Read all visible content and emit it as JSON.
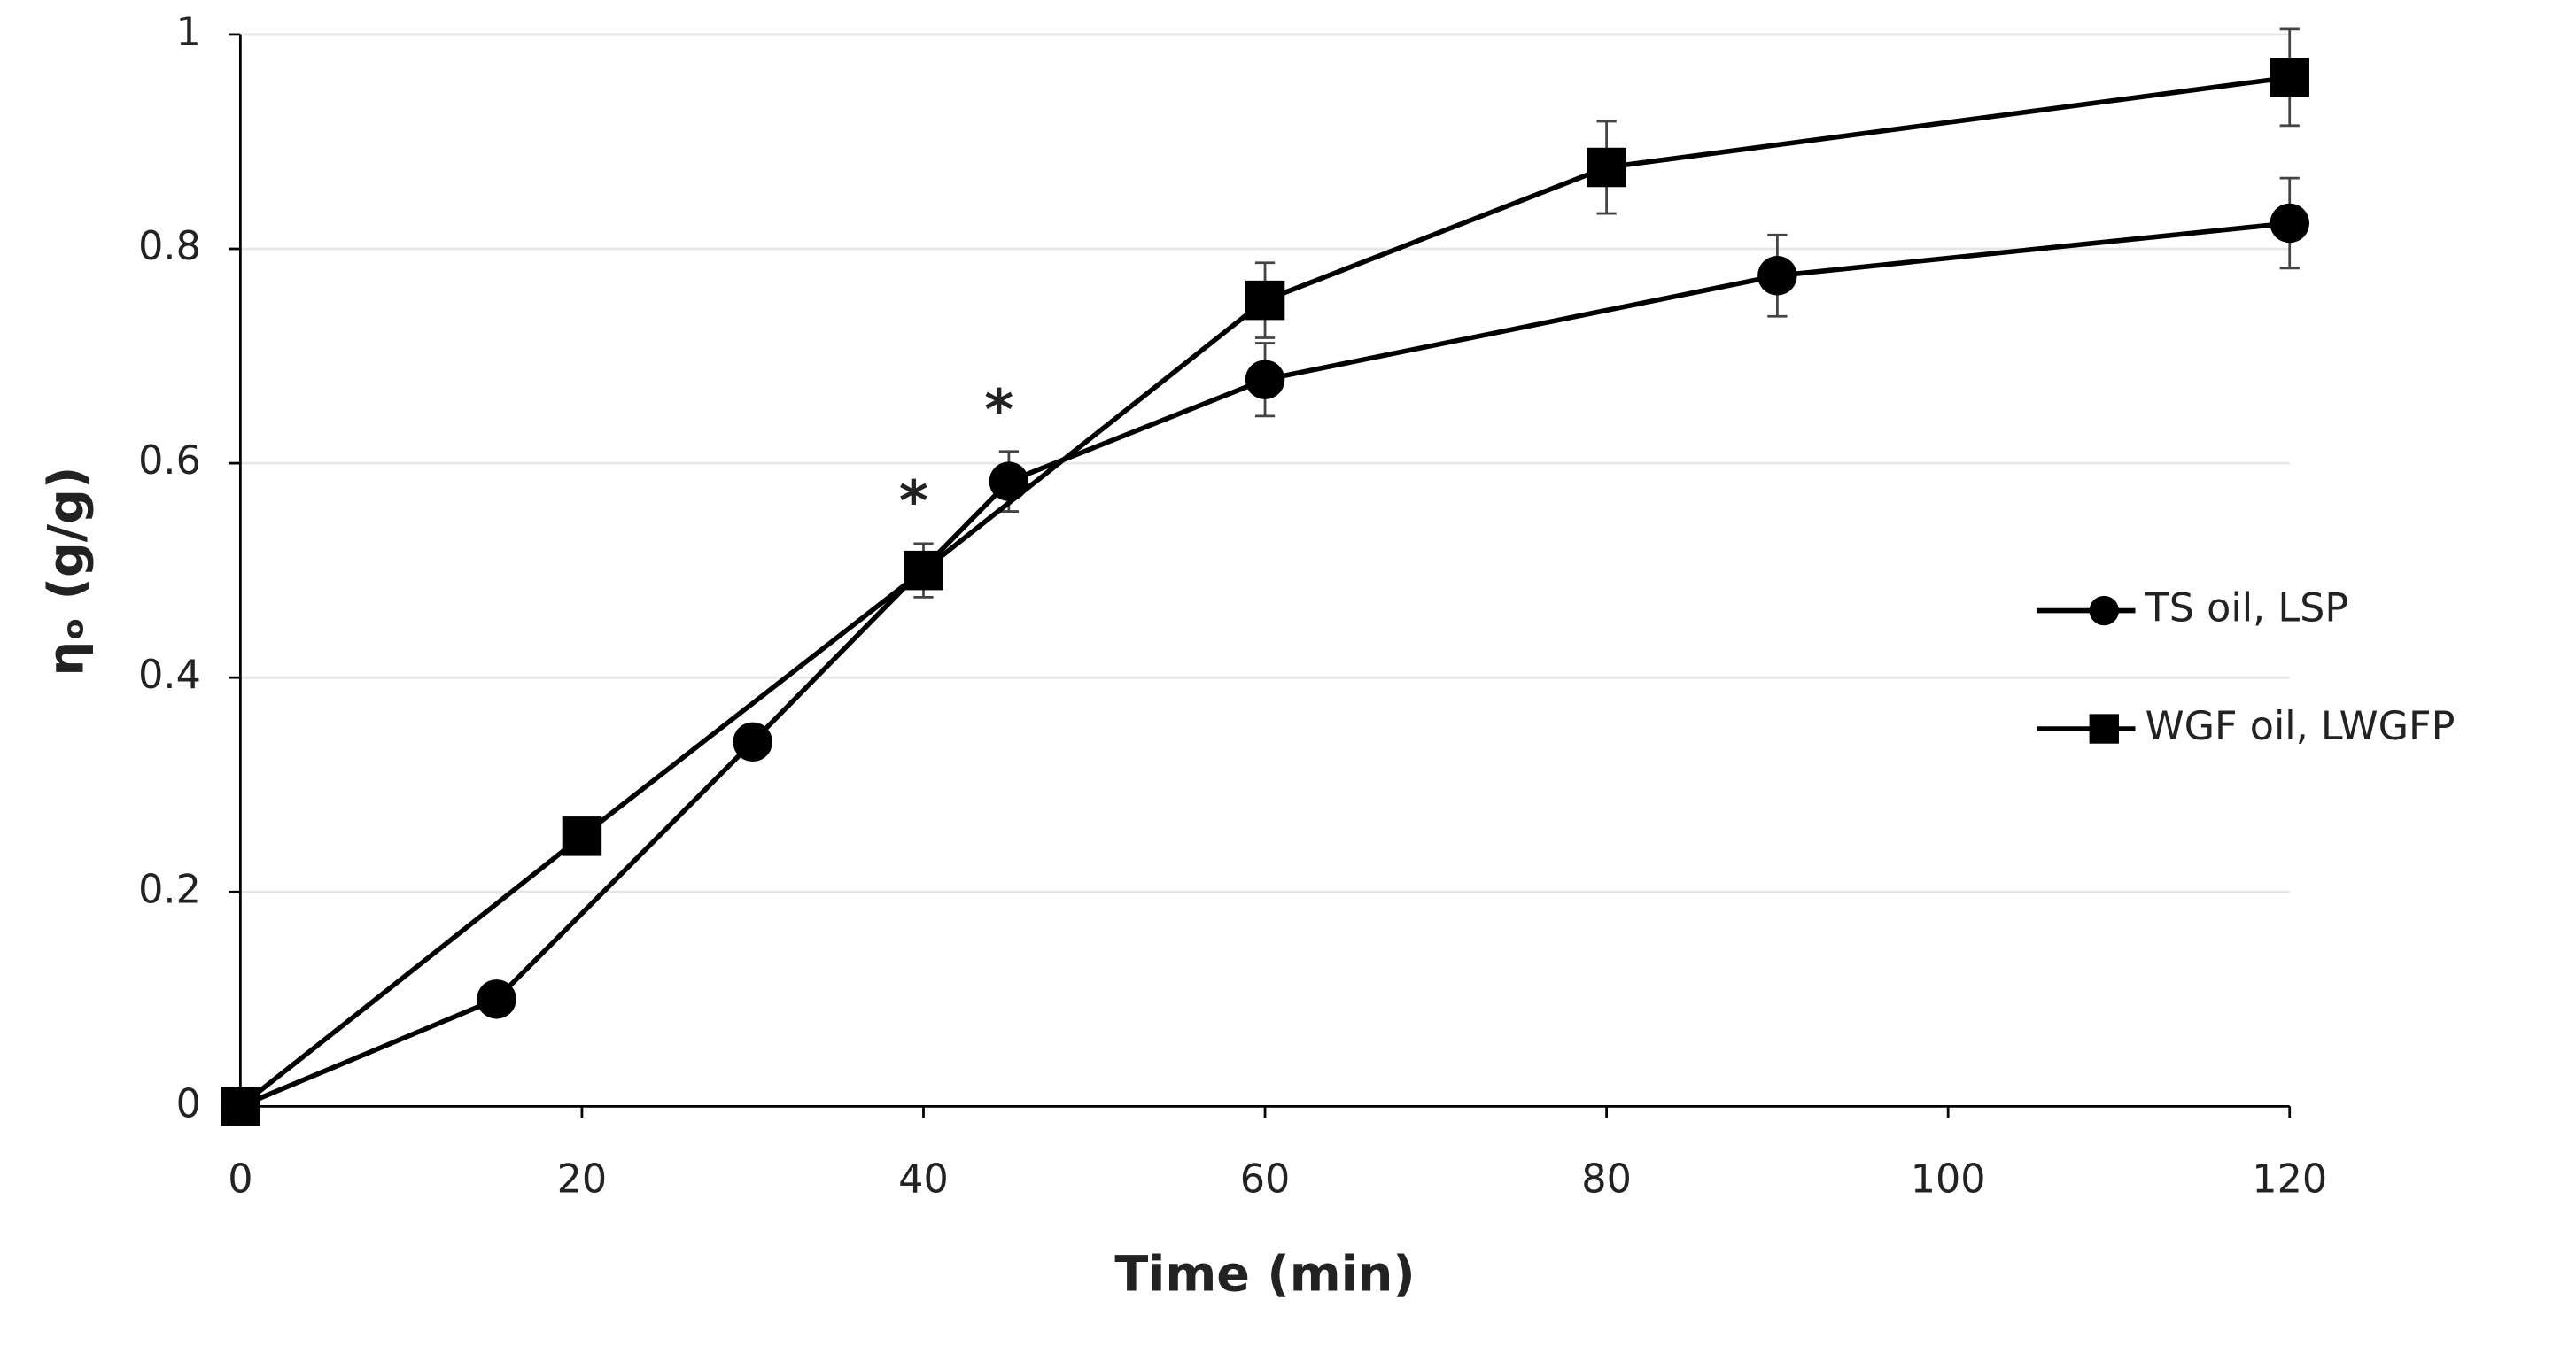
{
  "chart_data": {
    "type": "line",
    "x_label": "Time (min)",
    "y_label": "ηₒ (g/g)",
    "xlim": [
      0,
      120
    ],
    "xticks": [
      0,
      20,
      40,
      60,
      80,
      100,
      120
    ],
    "ylim": [
      0,
      1
    ],
    "yticks": [
      0,
      0.2,
      0.4,
      0.6,
      0.8,
      1
    ],
    "grid": true,
    "legend": "right",
    "series": [
      {
        "name": "TS oil, LSP",
        "color": "#000000",
        "marker": "circle",
        "x": [
          0,
          15,
          30,
          45,
          60,
          90,
          120
        ],
        "values": [
          0,
          0.1,
          0.34,
          0.583,
          0.678,
          0.775,
          0.824
        ],
        "errors": [
          null,
          null,
          0.015,
          0.028,
          0.034,
          0.038,
          0.042
        ]
      },
      {
        "name": "WGF oil, LWGFP",
        "color": "#000000",
        "marker": "square",
        "x": [
          0,
          20,
          40,
          60,
          80,
          120
        ],
        "values": [
          0,
          0.252,
          0.5,
          0.752,
          0.876,
          0.96
        ],
        "errors": [
          null,
          null,
          0.025,
          0.035,
          0.043,
          0.045
        ]
      }
    ],
    "annotations": [
      {
        "text": "*",
        "x": 40,
        "y": 0.57
      },
      {
        "text": "*",
        "x": 45,
        "y": 0.655
      }
    ]
  }
}
